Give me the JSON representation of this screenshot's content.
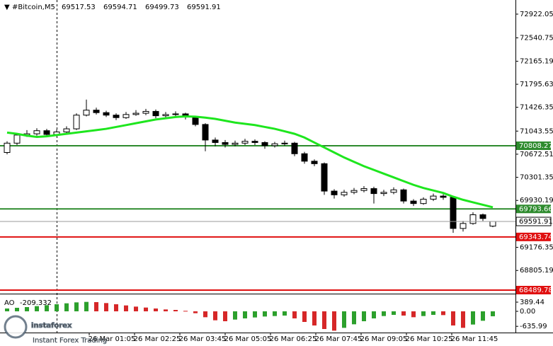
{
  "chart_data": {
    "type": "candlestick",
    "symbol": "#Bitcoin,M5",
    "ylim": [
      68433,
      73149
    ],
    "yticks": [
      72922.05,
      72540.75,
      72165.19,
      71795.63,
      71426.35,
      71043.55,
      70672.51,
      70301.35,
      69930.19,
      69176.35,
      68805.19
    ],
    "x_labels": [
      "26 Mar 01:05",
      "26 Mar 02:25",
      "26 Mar 03:45",
      "26 Mar 05:05",
      "26 Mar 06:25",
      "26 Mar 07:45",
      "26 Mar 09:05",
      "26 Mar 10:25",
      "26 Mar 11:45"
    ],
    "candles": [
      [
        70700,
        70880,
        70670,
        70850
      ],
      [
        70850,
        71010,
        70820,
        70980
      ],
      [
        70980,
        71060,
        70950,
        71000
      ],
      [
        71000,
        71090,
        70970,
        71050
      ],
      [
        71050,
        71080,
        70960,
        70990
      ],
      [
        70990,
        71070,
        70960,
        71030
      ],
      [
        71030,
        71120,
        71000,
        71080
      ],
      [
        71080,
        71330,
        71060,
        71300
      ],
      [
        71300,
        71550,
        71280,
        71380
      ],
      [
        71380,
        71420,
        71310,
        71340
      ],
      [
        71340,
        71370,
        71270,
        71300
      ],
      [
        71300,
        71330,
        71220,
        71260
      ],
      [
        71260,
        71350,
        71240,
        71310
      ],
      [
        71310,
        71380,
        71290,
        71330
      ],
      [
        71330,
        71400,
        71300,
        71360
      ],
      [
        71360,
        71390,
        71250,
        71290
      ],
      [
        71290,
        71350,
        71260,
        71310
      ],
      [
        71310,
        71360,
        71280,
        71320
      ],
      [
        71320,
        71340,
        71230,
        71270
      ],
      [
        71270,
        71290,
        71120,
        71150
      ],
      [
        71150,
        71170,
        70720,
        70900
      ],
      [
        70900,
        70940,
        70800,
        70860
      ],
      [
        70860,
        70900,
        70780,
        70830
      ],
      [
        70830,
        70890,
        70800,
        70850
      ],
      [
        70850,
        70920,
        70820,
        70880
      ],
      [
        70880,
        70910,
        70820,
        70860
      ],
      [
        70860,
        70880,
        70760,
        70810
      ],
      [
        70810,
        70870,
        70780,
        70840
      ],
      [
        70840,
        70890,
        70810,
        70850
      ],
      [
        70850,
        70870,
        70640,
        70680
      ],
      [
        70680,
        70710,
        70520,
        70560
      ],
      [
        70560,
        70590,
        70480,
        70520
      ],
      [
        70520,
        70540,
        70020,
        70080
      ],
      [
        70080,
        70110,
        69960,
        70020
      ],
      [
        70020,
        70100,
        69990,
        70060
      ],
      [
        70060,
        70130,
        70030,
        70090
      ],
      [
        70090,
        70160,
        70060,
        70120
      ],
      [
        70120,
        70150,
        69880,
        70040
      ],
      [
        70040,
        70100,
        70000,
        70060
      ],
      [
        70060,
        70140,
        70030,
        70100
      ],
      [
        70100,
        70120,
        69880,
        69920
      ],
      [
        69920,
        69950,
        69840,
        69880
      ],
      [
        69880,
        69980,
        69860,
        69950
      ],
      [
        69950,
        70040,
        69920,
        70000
      ],
      [
        70000,
        70030,
        69940,
        69980
      ],
      [
        69980,
        70000,
        69410,
        69480
      ],
      [
        69480,
        69600,
        69430,
        69560
      ],
      [
        69560,
        69740,
        69540,
        69700
      ],
      [
        69700,
        69720,
        69600,
        69640
      ],
      [
        69517.53,
        69594.71,
        69499.73,
        69591.91
      ]
    ],
    "ma": {
      "color": "#1ee61e",
      "values": [
        71020,
        71000,
        70970,
        70950,
        70960,
        70980,
        71000,
        71020,
        71040,
        71060,
        71080,
        71110,
        71140,
        71170,
        71200,
        71230,
        71250,
        71270,
        71280,
        71275,
        71260,
        71240,
        71210,
        71180,
        71160,
        71140,
        71110,
        71080,
        71040,
        71000,
        70940,
        70860,
        70780,
        70700,
        70620,
        70550,
        70480,
        70420,
        70360,
        70300,
        70240,
        70180,
        70130,
        70090,
        70050,
        69990,
        69940,
        69900,
        69860,
        69820
      ]
    },
    "levels": [
      {
        "value": 70808.27,
        "color": "#2e8b2e"
      },
      {
        "value": 69793.66,
        "color": "#2e8b2e"
      },
      {
        "value": 69343.74,
        "color": "#e01010"
      },
      {
        "value": 68489.78,
        "color": "#e01010"
      }
    ],
    "ao": {
      "name": "AO",
      "ylim": [
        -900,
        660
      ],
      "yticks": [
        389.44,
        {
          "value": 0,
          "label": "0.00"
        },
        -635.99
      ],
      "up_color": "#2ca02c",
      "down_color": "#d62728",
      "values": [
        120,
        150,
        180,
        220,
        260,
        300,
        340,
        380,
        400,
        390,
        350,
        300,
        250,
        200,
        160,
        120,
        80,
        60,
        20,
        -80,
        -250,
        -380,
        -420,
        -350,
        -300,
        -260,
        -220,
        -200,
        -180,
        -300,
        -450,
        -600,
        -750,
        -820,
        -700,
        -550,
        -420,
        -300,
        -200,
        -150,
        -180,
        -250,
        -200,
        -150,
        -160,
        -600,
        -700,
        -560,
        -400,
        -209.332
      ]
    },
    "watermark": [
      "instaforex",
      "Instant Forex Trading"
    ]
  }
}
